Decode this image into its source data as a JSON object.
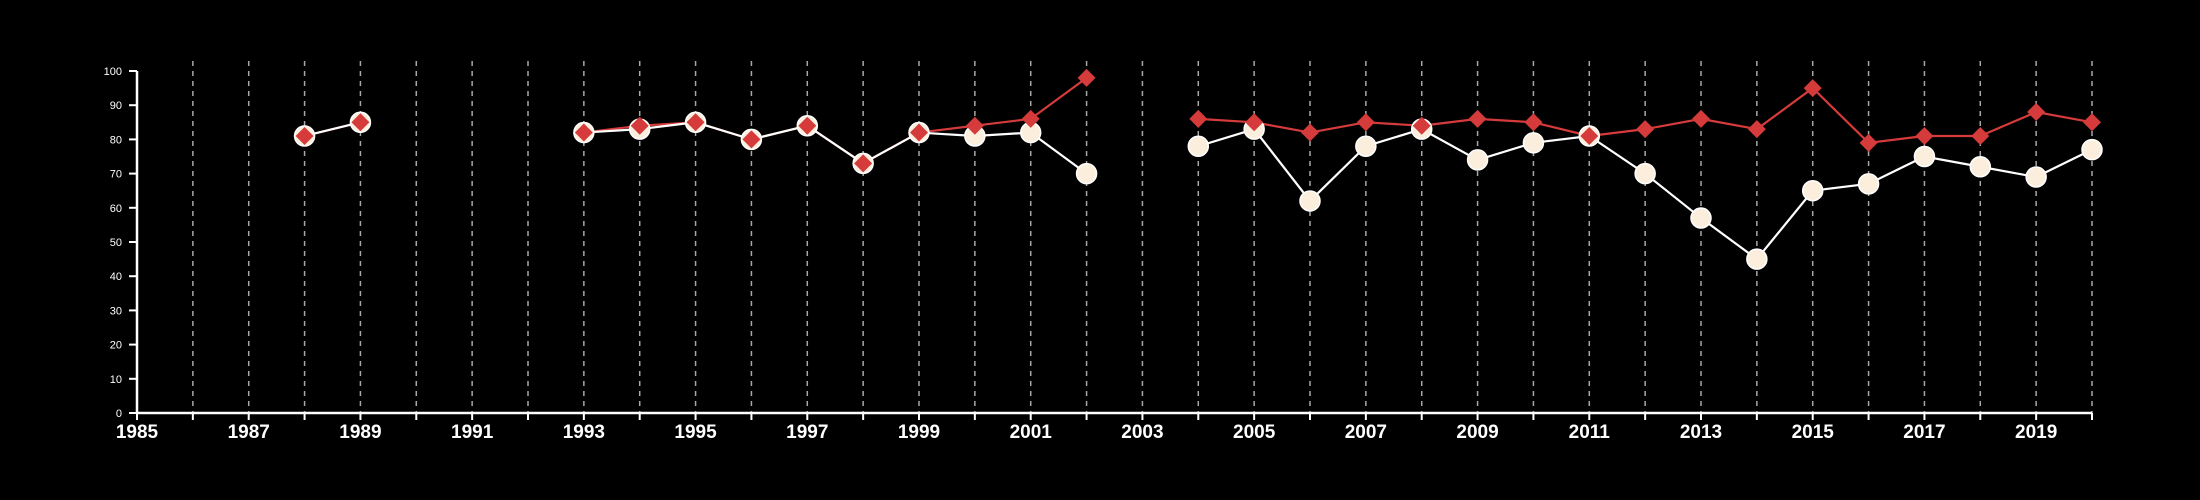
{
  "chart_data": {
    "type": "line",
    "title": "",
    "xlabel": "",
    "ylabel": "",
    "xlim": [
      1985,
      2020
    ],
    "ylim": [
      0,
      100
    ],
    "x_ticks": [
      1985,
      1986,
      1987,
      1988,
      1989,
      1990,
      1991,
      1992,
      1993,
      1994,
      1995,
      1996,
      1997,
      1998,
      1999,
      2000,
      2001,
      2002,
      2003,
      2004,
      2005,
      2006,
      2007,
      2008,
      2009,
      2010,
      2011,
      2012,
      2013,
      2014,
      2015,
      2016,
      2017,
      2018,
      2019,
      2020
    ],
    "x_tick_labels": [
      "1985",
      "1987",
      "1989",
      "1991",
      "1993",
      "1995",
      "1997",
      "1999",
      "2001",
      "2003",
      "2005",
      "2007",
      "2009",
      "2011",
      "2013",
      "2015",
      "2017",
      "2019"
    ],
    "y_tick_labels": [
      "0",
      "10",
      "20",
      "30",
      "40",
      "50",
      "60",
      "70",
      "80",
      "90",
      "100"
    ],
    "grid": "vertical dashed",
    "legend": "none",
    "colors": {
      "background": "#000000",
      "axis": "#ffffff",
      "grid": "#a8a8a8",
      "series_red": "#d63b3b",
      "series_cream": "#fbeedd",
      "cream_line": "#ffffff"
    },
    "series": [
      {
        "marker": "diamond",
        "color": "#d63b3b",
        "points": [
          [
            1988,
            81
          ],
          [
            1989,
            85
          ],
          [
            1993,
            82
          ],
          [
            1994,
            84
          ],
          [
            1995,
            85
          ],
          [
            1996,
            80
          ],
          [
            1997,
            84
          ],
          [
            1998,
            73
          ],
          [
            1999,
            82
          ],
          [
            2000,
            84
          ],
          [
            2001,
            86
          ],
          [
            2002,
            98
          ],
          [
            2004,
            86
          ],
          [
            2005,
            85
          ],
          [
            2006,
            82
          ],
          [
            2007,
            85
          ],
          [
            2008,
            84
          ],
          [
            2009,
            86
          ],
          [
            2010,
            85
          ],
          [
            2011,
            81
          ],
          [
            2012,
            83
          ],
          [
            2013,
            86
          ],
          [
            2014,
            83
          ],
          [
            2015,
            95
          ],
          [
            2016,
            79
          ],
          [
            2017,
            81
          ],
          [
            2018,
            81
          ],
          [
            2019,
            88
          ],
          [
            2020,
            85
          ]
        ]
      },
      {
        "marker": "circle",
        "color": "#fbeedd",
        "points": [
          [
            1988,
            81
          ],
          [
            1989,
            85
          ],
          [
            1993,
            82
          ],
          [
            1994,
            83
          ],
          [
            1995,
            85
          ],
          [
            1996,
            80
          ],
          [
            1997,
            84
          ],
          [
            1998,
            73
          ],
          [
            1999,
            82
          ],
          [
            2000,
            81
          ],
          [
            2001,
            82
          ],
          [
            2002,
            70
          ],
          [
            2004,
            78
          ],
          [
            2005,
            83
          ],
          [
            2006,
            62
          ],
          [
            2007,
            78
          ],
          [
            2008,
            83
          ],
          [
            2009,
            74
          ],
          [
            2010,
            79
          ],
          [
            2011,
            81
          ],
          [
            2012,
            70
          ],
          [
            2013,
            57
          ],
          [
            2014,
            45
          ],
          [
            2015,
            65
          ],
          [
            2016,
            67
          ],
          [
            2017,
            75
          ],
          [
            2018,
            72
          ],
          [
            2019,
            69
          ],
          [
            2020,
            77
          ]
        ]
      }
    ]
  }
}
